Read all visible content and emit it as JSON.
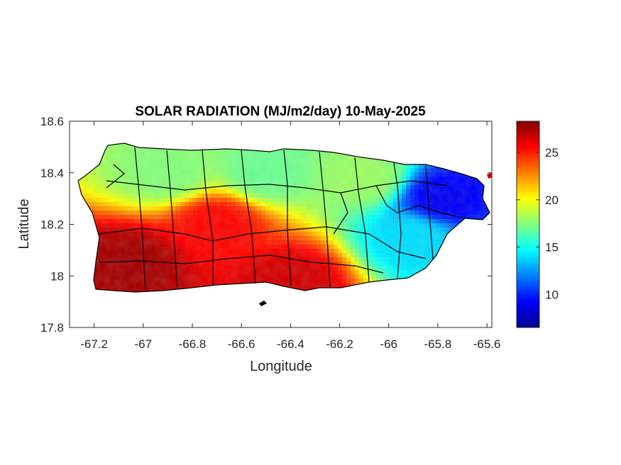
{
  "chart_data": {
    "type": "heatmap",
    "title": "SOLAR RADIATION (MJ/m2/day) 10-May-2025",
    "xlabel": "Longitude",
    "ylabel": "Latitude",
    "xlim": [
      -67.3,
      -65.58
    ],
    "ylim": [
      17.8,
      18.6
    ],
    "xticks": [
      -67.2,
      -67,
      -66.8,
      -66.6,
      -66.4,
      -66.2,
      -66,
      -65.8,
      -65.6
    ],
    "xtick_labels": [
      "-67.2",
      "-67",
      "-66.8",
      "-66.6",
      "-66.4",
      "-66.2",
      "-66",
      "-65.8",
      "-65.6"
    ],
    "yticks": [
      17.8,
      18,
      18.2,
      18.4,
      18.6
    ],
    "ytick_labels": [
      "17.8",
      "18",
      "18.2",
      "18.4",
      "18.6"
    ],
    "colorbar": {
      "colormap": "jet",
      "range": [
        6.5,
        28.3
      ],
      "ticks": [
        10,
        15,
        20,
        25
      ],
      "tick_labels": [
        "10",
        "15",
        "20",
        "25"
      ]
    },
    "summary_regions": [
      {
        "lon": -67.05,
        "lat": 18.05,
        "value": 27.5
      },
      {
        "lon": -66.7,
        "lat": 18.2,
        "value": 25.5
      },
      {
        "lon": -66.4,
        "lat": 17.98,
        "value": 26.5
      },
      {
        "lon": -66.9,
        "lat": 18.4,
        "value": 17.5
      },
      {
        "lon": -66.5,
        "lat": 18.4,
        "value": 17
      },
      {
        "lon": -66.1,
        "lat": 18.38,
        "value": 18
      },
      {
        "lon": -65.78,
        "lat": 18.3,
        "value": 9
      },
      {
        "lon": -65.9,
        "lat": 18.15,
        "value": 14
      }
    ]
  },
  "colors": {
    "land_border": "#000000",
    "axes_frame": "#262626"
  }
}
